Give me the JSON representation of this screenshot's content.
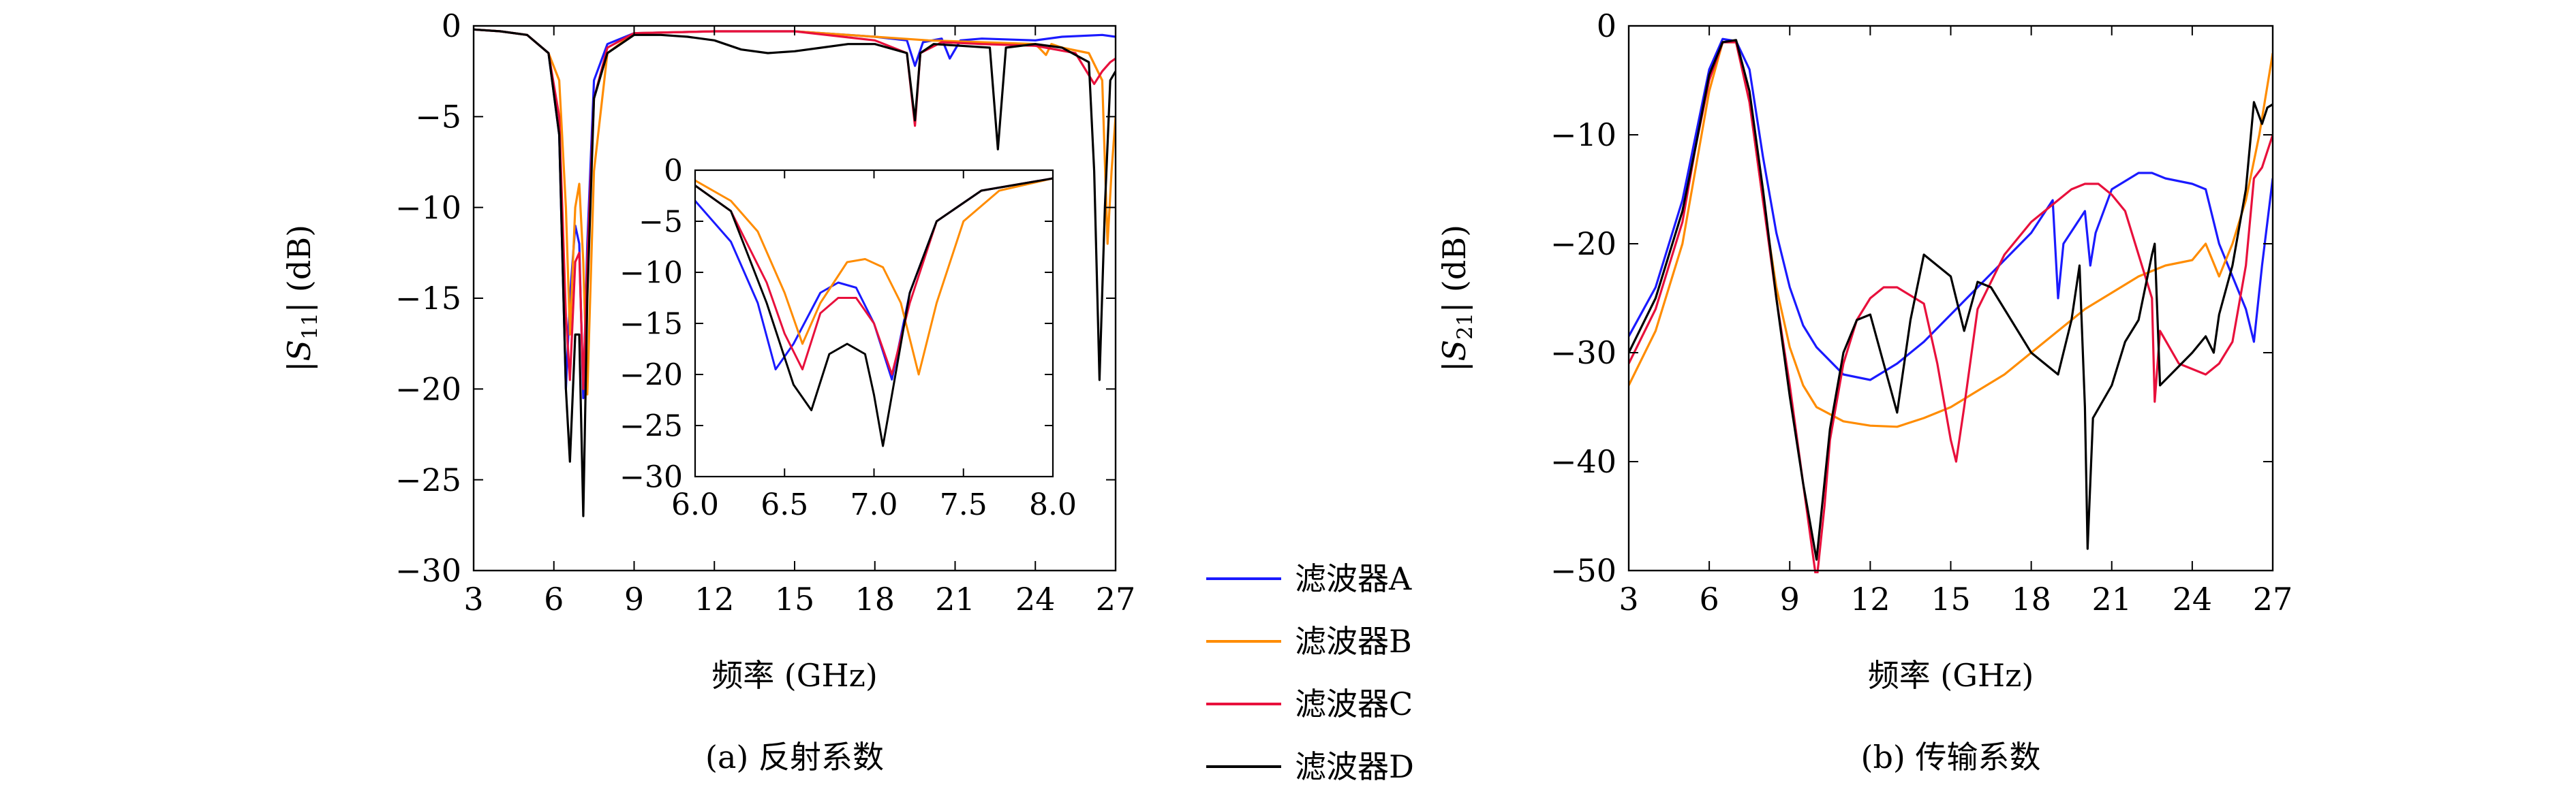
{
  "chart_data": [
    {
      "type": "line",
      "subfigure_label": "(a) 反射系数",
      "xlabel": "频率 (GHz)",
      "ylabel": "|S11| (dB)",
      "xlim": [
        3,
        27
      ],
      "ylim": [
        -30,
        0
      ],
      "xticks": [
        3,
        6,
        9,
        12,
        15,
        18,
        21,
        24,
        27
      ],
      "yticks": [
        0,
        -5,
        -10,
        -15,
        -20,
        -25,
        -30
      ],
      "series": [
        {
          "name": "滤波器A",
          "color": "#1a1aff",
          "x": [
            3,
            4,
            5,
            5.8,
            6.2,
            6.45,
            6.6,
            6.8,
            6.95,
            7.1,
            7.25,
            7.5,
            8,
            9,
            12,
            15,
            18,
            19.2,
            19.5,
            19.8,
            20.5,
            20.8,
            21.2,
            22,
            24,
            25,
            26.5,
            27
          ],
          "y": [
            -0.2,
            -0.3,
            -0.5,
            -1.5,
            -6,
            -20,
            -15,
            -11,
            -12,
            -20.5,
            -12,
            -3,
            -1,
            -0.4,
            -0.3,
            -0.3,
            -0.6,
            -0.8,
            -2.2,
            -0.9,
            -0.7,
            -1.8,
            -0.8,
            -0.7,
            -0.8,
            -0.6,
            -0.5,
            -0.6
          ]
        },
        {
          "name": "滤波器B",
          "color": "#ff8c00",
          "x": [
            3,
            4,
            5,
            5.8,
            6.2,
            6.45,
            6.6,
            6.8,
            6.95,
            7.1,
            7.25,
            7.5,
            8,
            9,
            12,
            15,
            18,
            20,
            22,
            24,
            24.4,
            24.6,
            25,
            26,
            26.5,
            26.7,
            26.85,
            27
          ],
          "y": [
            -0.2,
            -0.3,
            -0.5,
            -1.5,
            -3,
            -10,
            -17,
            -10,
            -8.7,
            -13,
            -20.3,
            -8,
            -1.5,
            -0.4,
            -0.3,
            -0.3,
            -0.6,
            -0.8,
            -0.9,
            -1,
            -1.6,
            -1,
            -1.2,
            -1.5,
            -3,
            -12,
            -8,
            -5
          ]
        },
        {
          "name": "滤波器C",
          "color": "#e8103c",
          "x": [
            3,
            4,
            5,
            5.8,
            6.2,
            6.45,
            6.6,
            6.8,
            6.95,
            7.1,
            7.25,
            7.5,
            8,
            9,
            12,
            15,
            18,
            19.2,
            19.5,
            19.7,
            20.5,
            22,
            24,
            25.5,
            26.2,
            26.5,
            26.8,
            27
          ],
          "y": [
            -0.2,
            -0.3,
            -0.5,
            -1.5,
            -5,
            -16,
            -19.5,
            -13,
            -12.5,
            -20,
            -13,
            -4,
            -1.2,
            -0.4,
            -0.3,
            -0.3,
            -0.8,
            -1.5,
            -5.5,
            -1.5,
            -0.9,
            -1,
            -1.1,
            -1.5,
            -3.2,
            -2.5,
            -2,
            -1.8
          ]
        },
        {
          "name": "滤波器D",
          "color": "#000000",
          "x": [
            3,
            4,
            5,
            5.8,
            6.2,
            6.45,
            6.6,
            6.8,
            6.95,
            7.1,
            7.25,
            7.5,
            8,
            9,
            10,
            11,
            12,
            13,
            14,
            15,
            16,
            17,
            18,
            19.2,
            19.5,
            19.7,
            20.2,
            22.3,
            22.6,
            22.9,
            24,
            25,
            26,
            26.2,
            26.4,
            26.6,
            26.8,
            27
          ],
          "y": [
            -0.2,
            -0.3,
            -0.5,
            -1.5,
            -6,
            -20,
            -24,
            -17,
            -17,
            -27,
            -15,
            -4,
            -1.5,
            -0.5,
            -0.5,
            -0.6,
            -0.8,
            -1.3,
            -1.5,
            -1.4,
            -1.2,
            -1,
            -1,
            -1.5,
            -5.2,
            -1.5,
            -1,
            -1.2,
            -6.8,
            -1.2,
            -1,
            -1.2,
            -2,
            -8,
            -19.5,
            -10,
            -3,
            -2.5
          ]
        }
      ],
      "inset": {
        "xlim": [
          6.0,
          8.0
        ],
        "ylim": [
          -30,
          0
        ],
        "xticks": [
          6.0,
          6.5,
          7.0,
          7.5,
          8.0
        ],
        "xtick_labels": [
          "6.0",
          "6.5",
          "7.0",
          "7.5",
          "8.0"
        ],
        "yticks": [
          0,
          -5,
          -10,
          -15,
          -20,
          -25,
          -30
        ],
        "series": [
          {
            "name": "滤波器A",
            "color": "#1a1aff",
            "x": [
              6.0,
              6.2,
              6.35,
              6.45,
              6.55,
              6.7,
              6.8,
              6.9,
              7.0,
              7.1,
              7.2,
              7.35,
              7.6,
              8.0
            ],
            "y": [
              -3,
              -7,
              -13,
              -19.5,
              -17,
              -12,
              -11,
              -11.5,
              -15,
              -20.5,
              -12,
              -5,
              -2,
              -0.8
            ]
          },
          {
            "name": "滤波器B",
            "color": "#ff8c00",
            "x": [
              6.0,
              6.2,
              6.35,
              6.5,
              6.6,
              6.7,
              6.85,
              6.95,
              7.05,
              7.15,
              7.25,
              7.35,
              7.5,
              7.7,
              8.0
            ],
            "y": [
              -1,
              -3,
              -6,
              -12,
              -17,
              -13,
              -9,
              -8.7,
              -9.5,
              -13,
              -20,
              -13,
              -5,
              -2,
              -0.8
            ]
          },
          {
            "name": "滤波器C",
            "color": "#e8103c",
            "x": [
              6.0,
              6.2,
              6.4,
              6.5,
              6.6,
              6.7,
              6.8,
              6.9,
              7.0,
              7.1,
              7.2,
              7.35,
              7.6,
              8.0
            ],
            "y": [
              -1.5,
              -4,
              -11,
              -16,
              -19.5,
              -14,
              -12.5,
              -12.5,
              -15,
              -20,
              -13,
              -5,
              -2,
              -0.8
            ]
          },
          {
            "name": "滤波器D",
            "color": "#000000",
            "x": [
              6.0,
              6.2,
              6.4,
              6.55,
              6.65,
              6.75,
              6.85,
              6.95,
              7.0,
              7.05,
              7.1,
              7.2,
              7.35,
              7.6,
              8.0
            ],
            "y": [
              -1.5,
              -4,
              -13,
              -21,
              -23.5,
              -18,
              -17,
              -18,
              -22,
              -27,
              -22,
              -12,
              -5,
              -2,
              -0.8
            ]
          }
        ]
      }
    },
    {
      "type": "line",
      "subfigure_label": "(b) 传输系数",
      "xlabel": "频率 (GHz)",
      "ylabel": "|S21| (dB)",
      "xlim": [
        3,
        27
      ],
      "ylim": [
        -50,
        0
      ],
      "xticks": [
        3,
        6,
        9,
        12,
        15,
        18,
        21,
        24,
        27
      ],
      "yticks": [
        0,
        -10,
        -20,
        -30,
        -40,
        -50
      ],
      "series": [
        {
          "name": "滤波器A",
          "color": "#1a1aff",
          "x": [
            3,
            4,
            5,
            5.5,
            6,
            6.5,
            7,
            7.5,
            8,
            8.5,
            9,
            9.5,
            10,
            11,
            12,
            13,
            14,
            15,
            16,
            17,
            18,
            18.8,
            19,
            19.2,
            20,
            20.2,
            20.4,
            21,
            22,
            22.5,
            23,
            24,
            24.5,
            25,
            26,
            26.3,
            26.6,
            27
          ],
          "y": [
            -28.5,
            -24,
            -16,
            -10,
            -4,
            -1.2,
            -1.4,
            -4,
            -12,
            -19,
            -24,
            -27.5,
            -29.5,
            -32,
            -32.5,
            -31,
            -29,
            -26.5,
            -24,
            -21.5,
            -19,
            -16,
            -25,
            -20,
            -17,
            -22,
            -19,
            -15,
            -13.5,
            -13.5,
            -14,
            -14.5,
            -15,
            -20,
            -26,
            -29,
            -22,
            -14
          ]
        },
        {
          "name": "滤波器B",
          "color": "#ff8c00",
          "x": [
            3,
            4,
            5,
            5.5,
            6,
            6.5,
            7,
            7.5,
            8,
            8.5,
            9,
            9.5,
            10,
            11,
            12,
            13,
            14,
            15,
            16,
            17,
            18,
            19,
            20,
            21,
            22,
            23,
            24,
            24.5,
            25,
            25.5,
            26,
            26.5,
            27
          ],
          "y": [
            -33,
            -28,
            -20,
            -13,
            -6,
            -1.5,
            -1.5,
            -7,
            -16,
            -24,
            -29.5,
            -33,
            -35,
            -36.3,
            -36.7,
            -36.8,
            -36,
            -35,
            -33.5,
            -32,
            -30,
            -28,
            -26,
            -24.5,
            -23,
            -22,
            -21.5,
            -20,
            -23,
            -20,
            -16,
            -10,
            -2.5
          ]
        },
        {
          "name": "滤波器C",
          "color": "#e8103c",
          "x": [
            3,
            4,
            5,
            5.5,
            6,
            6.5,
            7,
            7.5,
            8,
            8.5,
            9,
            9.5,
            10,
            10.3,
            10.5,
            11,
            11.5,
            12,
            12.5,
            13,
            14,
            14.5,
            15,
            15.2,
            15.5,
            16,
            17,
            18,
            19,
            19.5,
            20,
            20.5,
            21,
            21.5,
            22,
            22.5,
            22.6,
            22.8,
            23.5,
            24,
            24.5,
            25,
            25.5,
            26,
            26.3,
            26.6,
            27
          ],
          "y": [
            -31,
            -26,
            -18,
            -11,
            -5,
            -1.5,
            -1.5,
            -7,
            -16,
            -25,
            -33,
            -42,
            -51,
            -44,
            -38,
            -31,
            -27,
            -25,
            -24,
            -24,
            -25.5,
            -31,
            -38,
            -40,
            -35,
            -26,
            -21,
            -18,
            -16,
            -15,
            -14.5,
            -14.5,
            -15.5,
            -17,
            -21,
            -25,
            -34.5,
            -28,
            -31,
            -31.5,
            -32,
            -31,
            -29,
            -22,
            -14,
            -13,
            -10
          ]
        },
        {
          "name": "滤波器D",
          "color": "#000000",
          "x": [
            3,
            4,
            5,
            5.5,
            6,
            6.5,
            7,
            7.5,
            8,
            8.5,
            9,
            9.5,
            10,
            10.5,
            11,
            11.5,
            12,
            12.5,
            13,
            13.5,
            14,
            15,
            15.5,
            16,
            16.5,
            17,
            18,
            19,
            19.5,
            19.8,
            20,
            20.1,
            20.3,
            21,
            21.5,
            22,
            22.5,
            22.6,
            22.8,
            23.2,
            24,
            24.5,
            24.8,
            25,
            25.5,
            26,
            26.3,
            26.6,
            26.8,
            27
          ],
          "y": [
            -30,
            -25,
            -17,
            -11,
            -4.5,
            -1.5,
            -1.3,
            -6,
            -15,
            -25,
            -34,
            -42,
            -49,
            -37,
            -30,
            -27,
            -26.5,
            -31,
            -35.5,
            -27,
            -21,
            -23,
            -28,
            -23.5,
            -24,
            -26,
            -30,
            -32,
            -27,
            -22,
            -35,
            -48,
            -36,
            -33,
            -29,
            -27,
            -21,
            -20,
            -33,
            -32,
            -30,
            -28.5,
            -30,
            -26.5,
            -22,
            -15,
            -7,
            -9,
            -7.5,
            -7.2
          ]
        }
      ]
    }
  ],
  "legend": {
    "placement": "center between panels",
    "entries": [
      {
        "label": "滤波器A",
        "color": "#1a1aff"
      },
      {
        "label": "滤波器B",
        "color": "#ff8c00"
      },
      {
        "label": "滤波器C",
        "color": "#e8103c"
      },
      {
        "label": "滤波器D",
        "color": "#000000"
      }
    ]
  }
}
